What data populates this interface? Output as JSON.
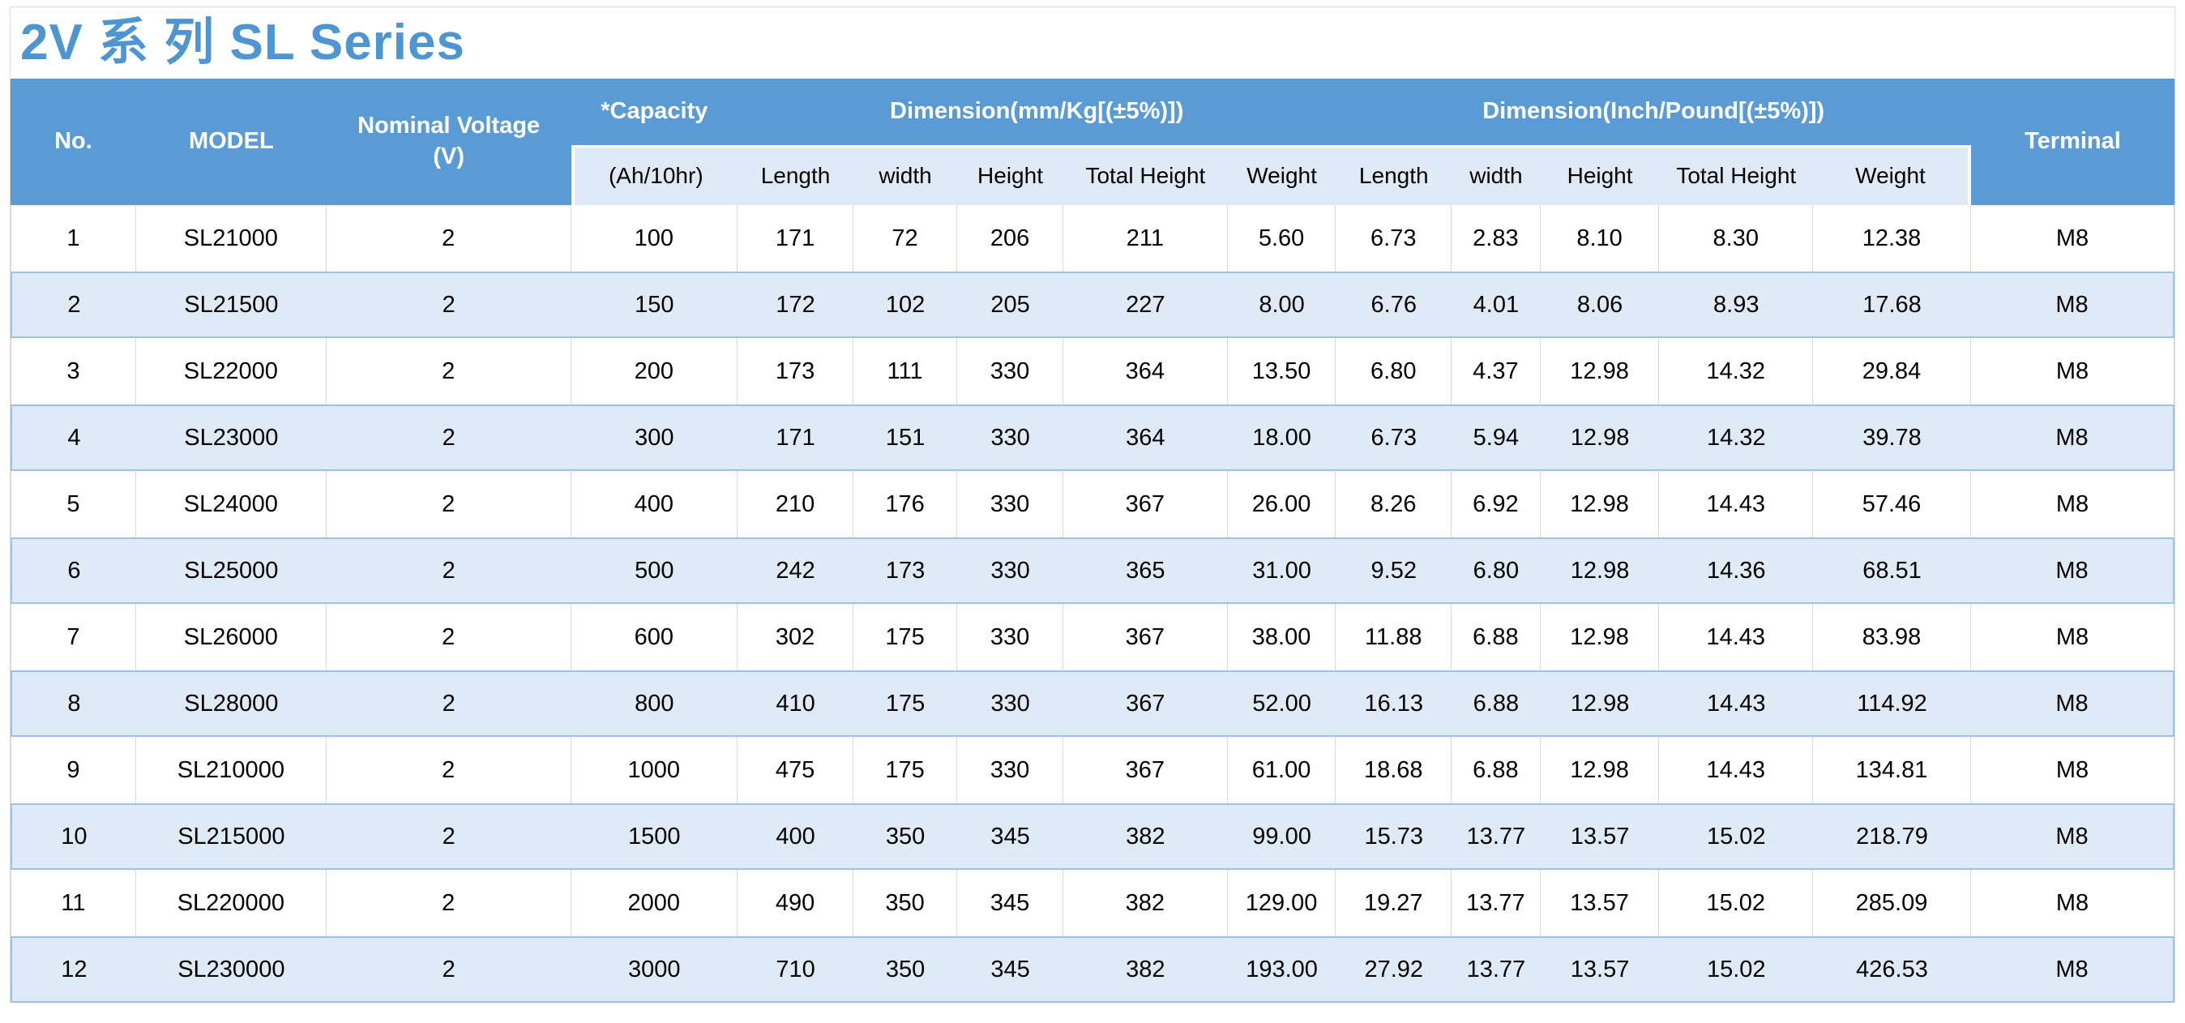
{
  "title": "2V 系 列 SL Series",
  "colors": {
    "header_blue": "#5B9BD5",
    "stripe_blue": "#DEEBF7",
    "stripe_border": "#9CC2E5",
    "grid_gray": "#D9D9D9",
    "title_blue": "#4D96D2"
  },
  "table": {
    "header": {
      "no": "No.",
      "model": "MODEL",
      "nominal_voltage_line1": "Nominal Voltage",
      "nominal_voltage_line2": "(V)",
      "capacity": "*Capacity",
      "capacity_sub": "(Ah/10hr)",
      "dim_mm": "Dimension(mm/Kg[(±5%)])",
      "dim_inch": "Dimension(Inch/Pound[(±5%)])",
      "terminal": "Terminal",
      "sub": [
        "Length",
        "width",
        "Height",
        "Total Height",
        "Weight"
      ]
    },
    "rows": [
      [
        "1",
        "SL21000",
        "2",
        "100",
        "171",
        "72",
        "206",
        "211",
        "5.60",
        "6.73",
        "2.83",
        "8.10",
        "8.30",
        "12.38",
        "M8"
      ],
      [
        "2",
        "SL21500",
        "2",
        "150",
        "172",
        "102",
        "205",
        "227",
        "8.00",
        "6.76",
        "4.01",
        "8.06",
        "8.93",
        "17.68",
        "M8"
      ],
      [
        "3",
        "SL22000",
        "2",
        "200",
        "173",
        "111",
        "330",
        "364",
        "13.50",
        "6.80",
        "4.37",
        "12.98",
        "14.32",
        "29.84",
        "M8"
      ],
      [
        "4",
        "SL23000",
        "2",
        "300",
        "171",
        "151",
        "330",
        "364",
        "18.00",
        "6.73",
        "5.94",
        "12.98",
        "14.32",
        "39.78",
        "M8"
      ],
      [
        "5",
        "SL24000",
        "2",
        "400",
        "210",
        "176",
        "330",
        "367",
        "26.00",
        "8.26",
        "6.92",
        "12.98",
        "14.43",
        "57.46",
        "M8"
      ],
      [
        "6",
        "SL25000",
        "2",
        "500",
        "242",
        "173",
        "330",
        "365",
        "31.00",
        "9.52",
        "6.80",
        "12.98",
        "14.36",
        "68.51",
        "M8"
      ],
      [
        "7",
        "SL26000",
        "2",
        "600",
        "302",
        "175",
        "330",
        "367",
        "38.00",
        "11.88",
        "6.88",
        "12.98",
        "14.43",
        "83.98",
        "M8"
      ],
      [
        "8",
        "SL28000",
        "2",
        "800",
        "410",
        "175",
        "330",
        "367",
        "52.00",
        "16.13",
        "6.88",
        "12.98",
        "14.43",
        "114.92",
        "M8"
      ],
      [
        "9",
        "SL210000",
        "2",
        "1000",
        "475",
        "175",
        "330",
        "367",
        "61.00",
        "18.68",
        "6.88",
        "12.98",
        "14.43",
        "134.81",
        "M8"
      ],
      [
        "10",
        "SL215000",
        "2",
        "1500",
        "400",
        "350",
        "345",
        "382",
        "99.00",
        "15.73",
        "13.77",
        "13.57",
        "15.02",
        "218.79",
        "M8"
      ],
      [
        "11",
        "SL220000",
        "2",
        "2000",
        "490",
        "350",
        "345",
        "382",
        "129.00",
        "19.27",
        "13.77",
        "13.57",
        "15.02",
        "285.09",
        "M8"
      ],
      [
        "12",
        "SL230000",
        "2",
        "3000",
        "710",
        "350",
        "345",
        "382",
        "193.00",
        "27.92",
        "13.77",
        "13.57",
        "15.02",
        "426.53",
        "M8"
      ]
    ]
  }
}
